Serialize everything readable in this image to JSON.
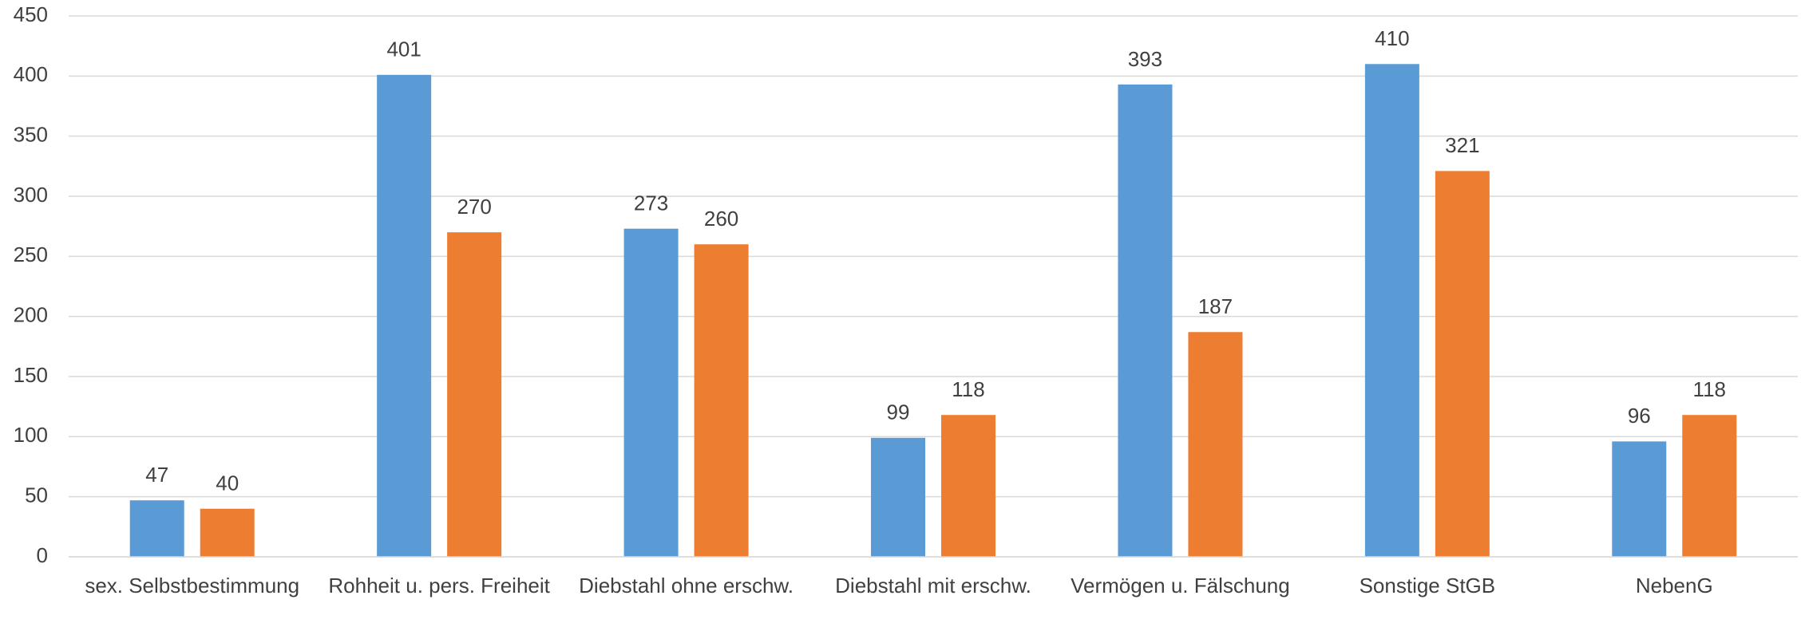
{
  "chart_data": {
    "type": "bar",
    "categories": [
      "sex. Selbstbestimmung",
      "Rohheit u. pers. Freiheit",
      "Diebstahl ohne erschw.",
      "Diebstahl mit erschw.",
      "Vermögen u. Fälschung",
      "Sonstige StGB",
      "NebenG"
    ],
    "series": [
      {
        "color": "#5b9bd5",
        "values": [
          47,
          401,
          273,
          99,
          393,
          410,
          96
        ]
      },
      {
        "color": "#ed7d31",
        "values": [
          40,
          270,
          260,
          118,
          187,
          321,
          118
        ]
      }
    ],
    "ylim": [
      0,
      450
    ],
    "yticks": [
      0,
      50,
      100,
      150,
      200,
      250,
      300,
      350,
      400,
      450
    ],
    "grid": true
  }
}
